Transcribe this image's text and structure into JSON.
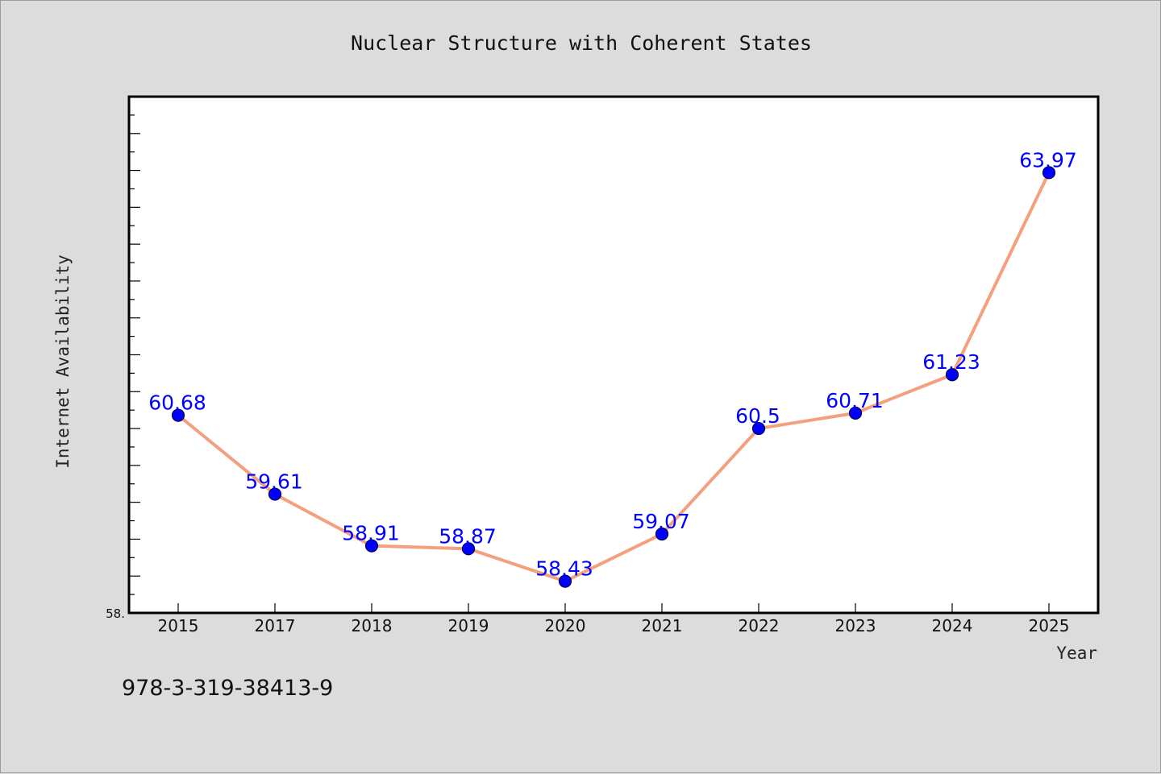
{
  "chart_data": {
    "type": "line",
    "title": "Nuclear Structure with Coherent States",
    "xlabel": "Year",
    "ylabel": "Internet Availability",
    "categories": [
      "2015",
      "2017",
      "2018",
      "2019",
      "2020",
      "2021",
      "2022",
      "2023",
      "2024",
      "2025"
    ],
    "series": [
      {
        "values": [
          60.68,
          59.61,
          58.91,
          58.87,
          58.43,
          59.07,
          60.5,
          60.71,
          61.23,
          63.97
        ],
        "labels": [
          "60.68",
          "59.61",
          "58.91",
          "58.87",
          "58.43",
          "59.07",
          "60.5",
          "60.71",
          "61.23",
          "63.97"
        ],
        "line_color": "#f4a07f",
        "marker_color": "#0000ff"
      }
    ],
    "ylim": [
      58.0,
      65.0
    ],
    "y_tick_label": "58.",
    "grid": false,
    "legend": "none"
  },
  "annotation": {
    "isbn": "978-3-319-38413-9"
  }
}
